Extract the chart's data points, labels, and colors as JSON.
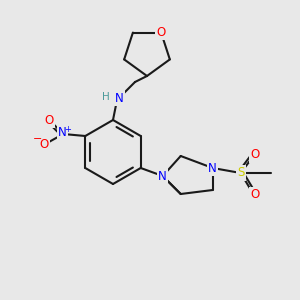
{
  "bg_color": "#e8e8e8",
  "bond_color": "#1a1a1a",
  "bond_lw": 1.5,
  "atom_colors": {
    "N": "#0000ff",
    "O": "#ff0000",
    "S": "#cccc00",
    "H": "#4a9a9a",
    "default": "#1a1a1a"
  },
  "font_size": 8.5,
  "font_size_small": 7.5
}
